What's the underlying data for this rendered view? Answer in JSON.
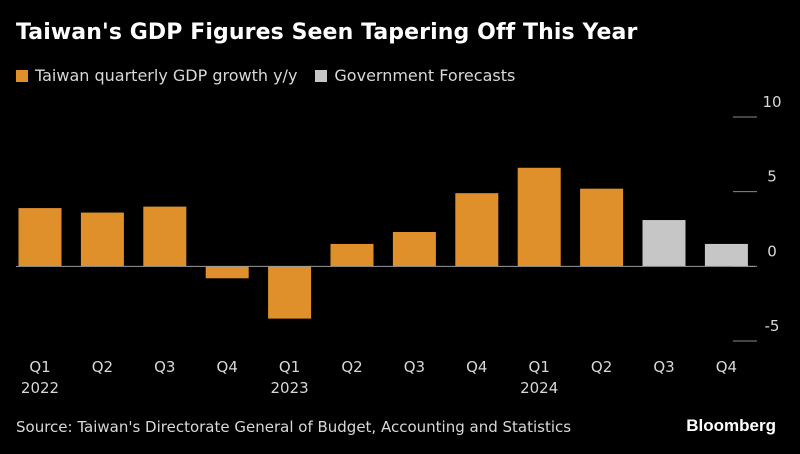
{
  "title": "Taiwan's GDP Figures Seen Tapering Off This Year",
  "source": "Source: Taiwan's Directorate General of Budget, Accounting and Statistics",
  "brand": "Bloomberg",
  "colors": {
    "actual": "#e0902a",
    "forecast": "#c6c6c6",
    "background": "#000000"
  },
  "chart_data": {
    "type": "bar",
    "title": "Taiwan's GDP Figures Seen Tapering Off This Year",
    "xlabel": "",
    "ylabel": "",
    "ylim": [
      -5,
      10
    ],
    "yticks": [
      10,
      5,
      0,
      -5
    ],
    "ytick_labels": [
      "10",
      "5",
      "0",
      "-5"
    ],
    "categories": [
      "Q1",
      "Q2",
      "Q3",
      "Q4",
      "Q1",
      "Q2",
      "Q3",
      "Q4",
      "Q1",
      "Q2",
      "Q3",
      "Q4"
    ],
    "year_labels": [
      {
        "label": "2022",
        "index": 0
      },
      {
        "label": "2023",
        "index": 4
      },
      {
        "label": "2024",
        "index": 8
      }
    ],
    "series": [
      {
        "name": "Taiwan quarterly GDP growth y/y",
        "color": "#e0902a",
        "values": [
          3.9,
          3.6,
          4.0,
          -0.8,
          -3.5,
          1.5,
          2.3,
          4.9,
          6.6,
          5.2,
          null,
          null
        ]
      },
      {
        "name": "Government Forecasts",
        "color": "#c6c6c6",
        "values": [
          null,
          null,
          null,
          null,
          null,
          null,
          null,
          null,
          null,
          null,
          3.1,
          1.5
        ]
      }
    ],
    "legend_position": "top-left",
    "grid": false
  }
}
